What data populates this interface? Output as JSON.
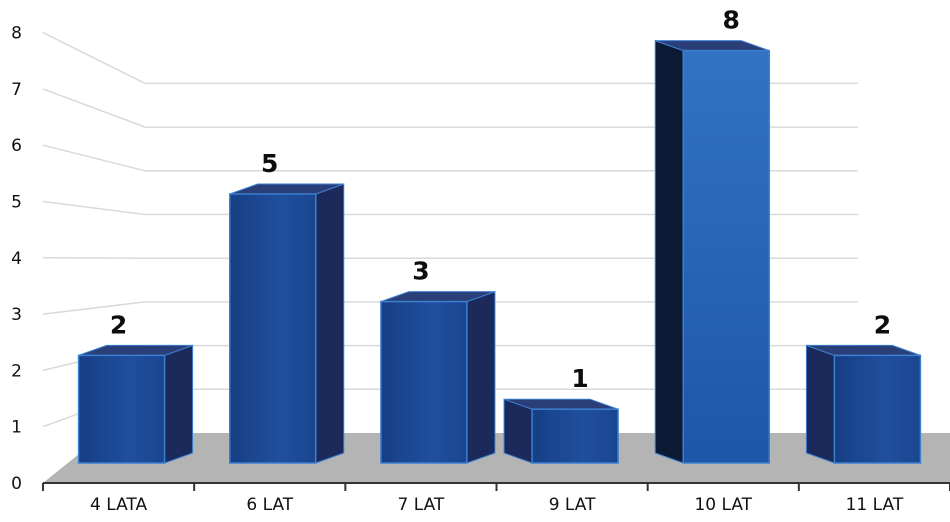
{
  "chart_data": {
    "type": "bar",
    "categories": [
      "4 LATA",
      "6 LAT",
      "7 LAT",
      "9 LAT",
      "10 LAT",
      "11 LAT"
    ],
    "values": [
      2,
      5,
      3,
      1,
      8,
      2
    ],
    "data_labels": [
      "2",
      "5",
      "3",
      "1",
      "8",
      "2"
    ],
    "title": "",
    "xlabel": "",
    "ylabel": "",
    "ylim": [
      0,
      8
    ],
    "yticks": [
      "0",
      "1",
      "2",
      "3",
      "4",
      "5",
      "6",
      "7",
      "8"
    ],
    "grid": true,
    "legend": "none",
    "style": "3d-column",
    "colors": {
      "bar_front": "#1c4a96",
      "bar_front_highlight": "#2f6fbf",
      "bar_side": "#1b2a5a",
      "bar_side_dark": "#0d1a36",
      "bar_top": "#2a3f78",
      "bar_edge": "#3b7fd0",
      "floor": "#b4b4b4",
      "grid": "#d9d9d9"
    }
  }
}
